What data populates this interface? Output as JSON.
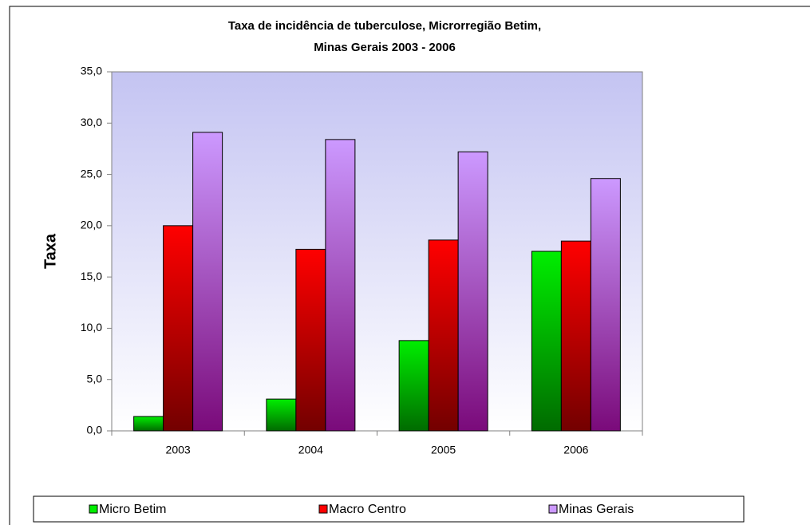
{
  "chart_data": {
    "type": "bar",
    "title": [
      "Taxa de incidência  de tuberculose, Microrregião Betim,",
      "Minas Gerais 2003 - 2006"
    ],
    "y_label": "Taxa",
    "categories": [
      "2003",
      "2004",
      "2005",
      "2006"
    ],
    "series": [
      {
        "name": "Micro Betim",
        "color": "#00ee00",
        "values": [
          1.4,
          3.1,
          8.8,
          17.5
        ]
      },
      {
        "name": "Macro  Centro",
        "color": "#ff0000",
        "values": [
          20.0,
          17.7,
          18.6,
          18.5
        ]
      },
      {
        "name": "Minas Gerais",
        "color": "#cc99ff",
        "values": [
          29.1,
          28.4,
          27.2,
          24.6
        ]
      }
    ],
    "ylim": [
      0,
      35
    ],
    "yticks": [
      {
        "value": 0,
        "label": "0,0"
      },
      {
        "value": 5,
        "label": "5,0"
      },
      {
        "value": 10,
        "label": "10,0"
      },
      {
        "value": 15,
        "label": "15,0"
      },
      {
        "value": 20,
        "label": "20,0"
      },
      {
        "value": 25,
        "label": "25,0"
      },
      {
        "value": 30,
        "label": "30,0"
      },
      {
        "value": 35,
        "label": "35,0"
      }
    ],
    "legend": "bottom"
  }
}
